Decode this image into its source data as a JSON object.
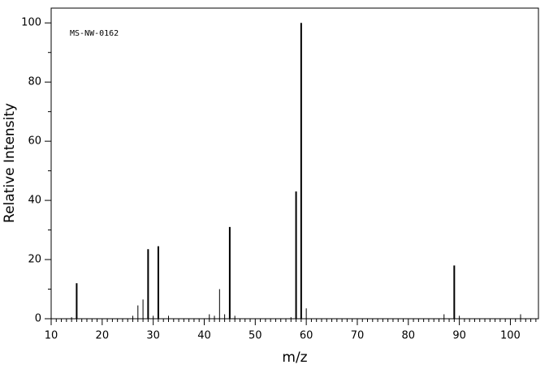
{
  "chart_data": {
    "type": "stem",
    "annotation": "MS-NW-0162",
    "x_label": "m/z",
    "y_label": "Relative Intensity",
    "x": [
      14,
      15,
      26,
      27,
      28,
      29,
      30,
      31,
      33,
      41,
      42,
      43,
      44,
      45,
      46,
      57,
      58,
      59,
      60,
      87,
      89,
      90,
      102
    ],
    "values": [
      0.5,
      12,
      1,
      4.5,
      6.5,
      23.5,
      1,
      24.5,
      1,
      1.5,
      1,
      10,
      1.5,
      31,
      1,
      0.5,
      43,
      100,
      3.5,
      1.5,
      18,
      1,
      1.5
    ],
    "color": "#000000",
    "xlim": [
      10,
      105.5
    ],
    "ylim": [
      0,
      105
    ],
    "xticks": [
      10,
      20,
      30,
      40,
      50,
      60,
      70,
      80,
      90,
      100
    ],
    "yticks": [
      0,
      20,
      40,
      60,
      80,
      100
    ],
    "xminorticks": [
      11,
      12,
      13,
      14,
      15,
      16,
      17,
      18,
      19,
      21,
      22,
      23,
      24,
      25,
      26,
      27,
      28,
      29,
      31,
      32,
      33,
      34,
      35,
      36,
      37,
      38,
      39,
      41,
      42,
      43,
      44,
      45,
      46,
      47,
      48,
      49,
      51,
      52,
      53,
      54,
      55,
      56,
      57,
      58,
      59,
      61,
      62,
      63,
      64,
      65,
      66,
      67,
      68,
      69,
      71,
      72,
      73,
      74,
      75,
      76,
      77,
      78,
      79,
      81,
      82,
      83,
      84,
      85,
      86,
      87,
      88,
      89,
      91,
      92,
      93,
      94,
      95,
      96,
      97,
      98,
      99,
      101,
      102,
      103,
      104,
      105
    ],
    "yminorticks": [
      10,
      30,
      50,
      70,
      90
    ]
  }
}
